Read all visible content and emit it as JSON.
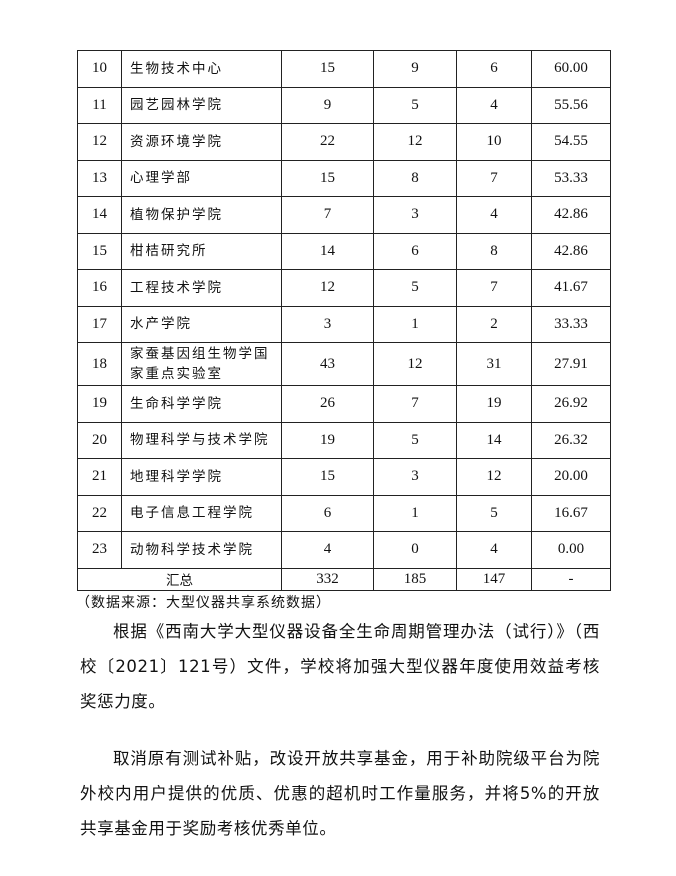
{
  "table": {
    "rows": [
      [
        "10",
        "生物技术中心",
        "15",
        "9",
        "6",
        "60.00"
      ],
      [
        "11",
        "园艺园林学院",
        "9",
        "5",
        "4",
        "55.56"
      ],
      [
        "12",
        "资源环境学院",
        "22",
        "12",
        "10",
        "54.55"
      ],
      [
        "13",
        "心理学部",
        "15",
        "8",
        "7",
        "53.33"
      ],
      [
        "14",
        "植物保护学院",
        "7",
        "3",
        "4",
        "42.86"
      ],
      [
        "15",
        "柑桔研究所",
        "14",
        "6",
        "8",
        "42.86"
      ],
      [
        "16",
        "工程技术学院",
        "12",
        "5",
        "7",
        "41.67"
      ],
      [
        "17",
        "水产学院",
        "3",
        "1",
        "2",
        "33.33"
      ],
      [
        "18",
        "家蚕基因组生物学国家重点实验室",
        "43",
        "12",
        "31",
        "27.91"
      ],
      [
        "19",
        "生命科学学院",
        "26",
        "7",
        "19",
        "26.92"
      ],
      [
        "20",
        "物理科学与技术学院",
        "19",
        "5",
        "14",
        "26.32"
      ],
      [
        "21",
        "地理科学学院",
        "15",
        "3",
        "12",
        "20.00"
      ],
      [
        "22",
        "电子信息工程学院",
        "6",
        "1",
        "5",
        "16.67"
      ],
      [
        "23",
        "动物科学技术学院",
        "4",
        "0",
        "4",
        "0.00"
      ]
    ],
    "total": [
      "汇总",
      "332",
      "185",
      "147",
      "-"
    ]
  },
  "source": "（数据来源：大型仪器共享系统数据）",
  "paragraphs": [
    "根据《西南大学大型仪器设备全生命周期管理办法（试行）》（西校〔2021〕121号）文件，学校将加强大型仪器年度使用效益考核奖惩力度。",
    "取消原有测试补贴，改设开放共享基金，用于补助院级平台为院外校内用户提供的优质、优惠的超机时工作量服务，并将5%的开放共享基金用于奖励考核优秀单位。"
  ]
}
